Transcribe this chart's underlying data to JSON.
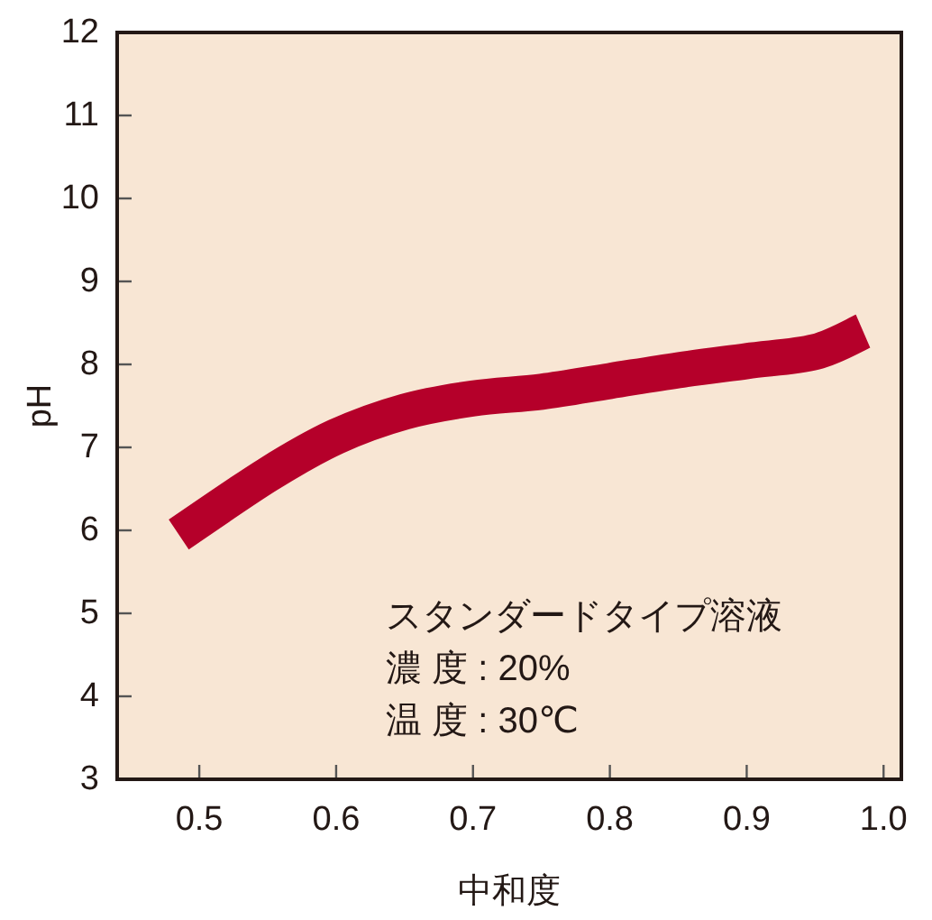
{
  "chart_data": {
    "type": "line",
    "xlabel": "中和度",
    "ylabel": "pH",
    "x": [
      0.485,
      0.55,
      0.6,
      0.65,
      0.7,
      0.75,
      0.8,
      0.85,
      0.9,
      0.95,
      0.985
    ],
    "series": [
      {
        "color": "#b5002a",
        "values": [
          5.95,
          6.67,
          7.13,
          7.43,
          7.59,
          7.67,
          7.8,
          7.93,
          8.04,
          8.15,
          8.4
        ]
      }
    ],
    "xlim": [
      0.44,
      1.013
    ],
    "ylim": [
      3,
      12
    ],
    "xticks": [
      0.5,
      0.6,
      0.7,
      0.8,
      0.9,
      {
        "value": 1.0,
        "label": "1.0"
      }
    ],
    "yticks": [
      3,
      4,
      5,
      6,
      7,
      8,
      9,
      10,
      11,
      12
    ],
    "annotations": [
      "スタンダードタイプ溶液",
      "濃 度 : 20%",
      "温 度 : 30℃"
    ],
    "grid": false
  }
}
